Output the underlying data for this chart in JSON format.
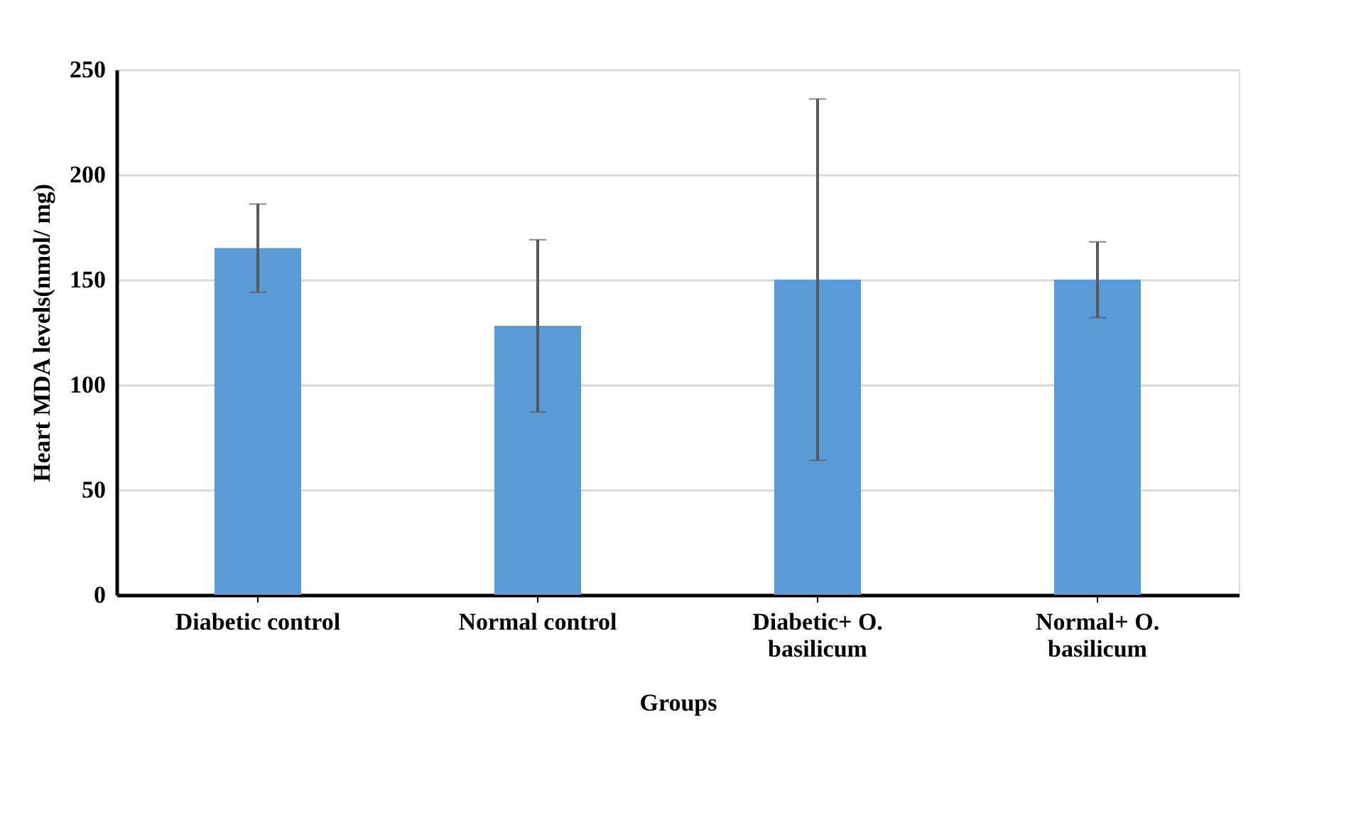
{
  "chart_data": {
    "type": "bar",
    "xlabel": "Groups",
    "ylabel": "Heart MDA levels(nmol/ mg)",
    "categories": [
      "Diabetic control",
      "Normal control",
      "Diabetic+ O. basilicum",
      "Normal+ O. basilicum"
    ],
    "values": [
      165,
      128,
      150,
      150
    ],
    "errors": [
      21,
      41,
      86,
      18
    ],
    "color": "#5b9bd5",
    "ylim": [
      0,
      250
    ],
    "yticks": [
      0,
      50,
      100,
      150,
      200,
      250
    ],
    "grid": "y"
  }
}
